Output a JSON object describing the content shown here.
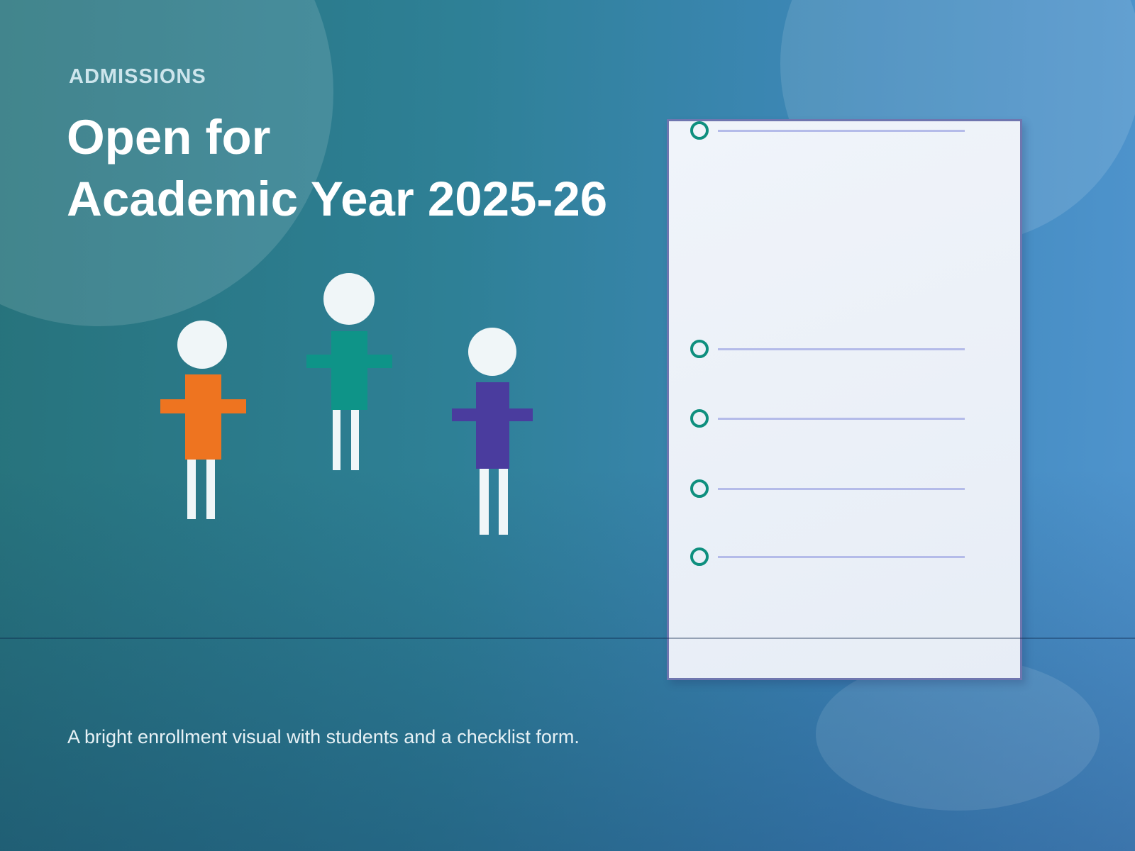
{
  "slide": {
    "eyebrow": "ADMISSIONS",
    "title_line1": "Open for",
    "title_line2": "Academic Year 2025-26",
    "caption": "A bright enrollment visual with students and a checklist form."
  },
  "checklist_form": {
    "items": [
      {
        "icon": "radio-circle-icon",
        "answer_text": ""
      },
      {
        "icon": "radio-circle-icon",
        "answer_text": ""
      },
      {
        "icon": "radio-circle-icon",
        "answer_text": ""
      },
      {
        "icon": "radio-circle-icon",
        "answer_text": ""
      },
      {
        "icon": "radio-circle-icon",
        "answer_text": ""
      }
    ]
  },
  "figures": [
    {
      "name": "student-orange",
      "color": "#EE7420"
    },
    {
      "name": "student-teal",
      "color": "#0E9488"
    },
    {
      "name": "student-purple",
      "color": "#4A3C9E"
    }
  ],
  "colors": {
    "background_teal": "#27737C",
    "background_blue": "#4F94CD",
    "panel_fill": "#EAF0F8",
    "panel_border": "#6F76AF",
    "radio_stroke": "#0E8F7E",
    "answer_line": "#B4BBE9",
    "head_and_legs": "#F0F6F8",
    "eyebrow_text": "#CDE5EC",
    "title_text": "#FFFFFF",
    "caption_text": "#E6F1F5"
  }
}
